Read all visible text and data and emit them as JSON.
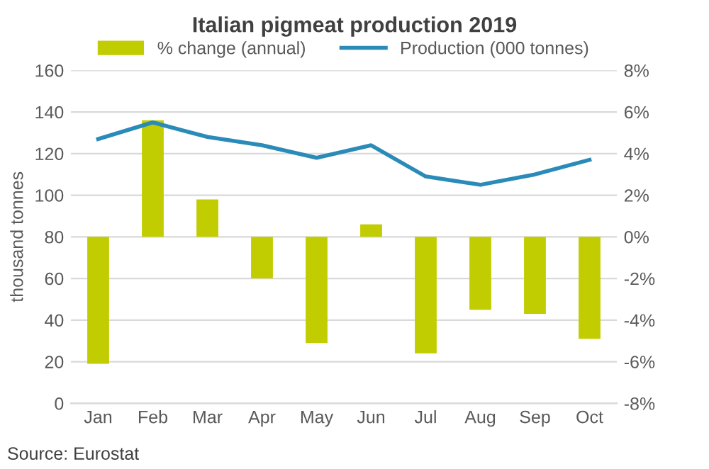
{
  "chart_data": {
    "type": "line",
    "title": "Italian pigmeat production 2019",
    "ylabel": "thousand tonnes",
    "categories": [
      "Jan",
      "Feb",
      "Mar",
      "Apr",
      "May",
      "Jun",
      "Jul",
      "Aug",
      "Sep",
      "Oct"
    ],
    "series": [
      {
        "name": "% change (annual)",
        "type": "bar",
        "axis": "y2",
        "color": "#c1cd00",
        "values": [
          -6.1,
          5.6,
          1.8,
          -2.0,
          -5.1,
          0.6,
          -5.6,
          -3.5,
          -3.7,
          -4.9
        ]
      },
      {
        "name": "Production (000 tonnes)",
        "color": "#2a8bb9",
        "values": [
          127,
          135,
          128,
          124,
          118,
          124,
          109,
          105,
          110,
          117
        ]
      }
    ],
    "ylim": [
      0,
      160
    ],
    "yticks": [
      0,
      20,
      40,
      60,
      80,
      100,
      120,
      140,
      160
    ],
    "y2lim": [
      -8,
      8
    ],
    "y2ticks": [
      {
        "value": -8,
        "label": "-8%"
      },
      {
        "value": -6,
        "label": "-6%"
      },
      {
        "value": -4,
        "label": "-4%"
      },
      {
        "value": -2,
        "label": "-2%"
      },
      {
        "value": 0,
        "label": "0%"
      },
      {
        "value": 2,
        "label": "2%"
      },
      {
        "value": 4,
        "label": "4%"
      },
      {
        "value": 6,
        "label": "6%"
      },
      {
        "value": 8,
        "label": "8%"
      }
    ],
    "grid": "y",
    "legend": "top",
    "marker": "none",
    "line_style": "solid",
    "annotations": [
      "Source: Eurostat"
    ]
  }
}
